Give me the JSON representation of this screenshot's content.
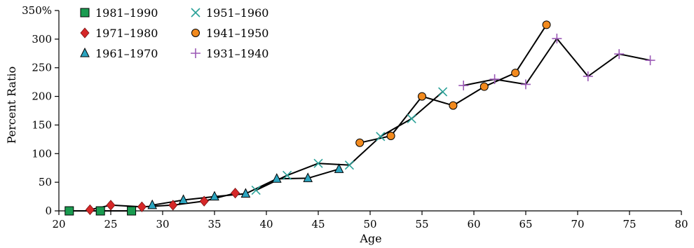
{
  "chart_data": {
    "type": "line",
    "xlabel": "Age",
    "ylabel": "Percent Ratio",
    "xlim": [
      20,
      80
    ],
    "ylim": [
      0,
      350
    ],
    "x_ticks": [
      20,
      25,
      30,
      35,
      40,
      45,
      50,
      55,
      60,
      65,
      70,
      75,
      80
    ],
    "x_tick_labels": [
      "20",
      "25",
      "30",
      "35",
      "40",
      "45",
      "50",
      "55",
      "60",
      "65",
      "70",
      "75",
      "80"
    ],
    "y_ticks": [
      0,
      50,
      100,
      150,
      200,
      250,
      300,
      350
    ],
    "y_tick_labels": [
      "0",
      "50",
      "100",
      "150",
      "200",
      "250",
      "300",
      "350%"
    ],
    "grid": false,
    "legend_position": "top-left",
    "series": [
      {
        "name": "1981–1990",
        "marker": "square",
        "color": "#1a9b50",
        "points": [
          [
            21,
            0
          ],
          [
            24,
            0
          ],
          [
            27,
            0
          ]
        ]
      },
      {
        "name": "1971–1980",
        "marker": "diamond",
        "color": "#d62728",
        "points": [
          [
            23,
            2
          ],
          [
            25,
            10
          ],
          [
            28,
            7
          ],
          [
            31,
            10
          ],
          [
            34,
            17
          ],
          [
            37,
            31
          ]
        ]
      },
      {
        "name": "1961–1970",
        "marker": "triangle",
        "color": "#2ca5c0",
        "points": [
          [
            29,
            10
          ],
          [
            32,
            19
          ],
          [
            35,
            25
          ],
          [
            38,
            30
          ],
          [
            41,
            56
          ],
          [
            44,
            57
          ],
          [
            47,
            73
          ]
        ]
      },
      {
        "name": "1951–1960",
        "marker": "x",
        "color": "#2aa198",
        "points": [
          [
            39,
            36
          ],
          [
            42,
            62
          ],
          [
            45,
            83
          ],
          [
            48,
            80
          ],
          [
            51,
            130
          ],
          [
            54,
            161
          ],
          [
            57,
            208
          ]
        ]
      },
      {
        "name": "1941–1950",
        "marker": "circle",
        "color": "#f28a1e",
        "points": [
          [
            49,
            119
          ],
          [
            52,
            131
          ],
          [
            55,
            200
          ],
          [
            58,
            184
          ],
          [
            61,
            217
          ],
          [
            64,
            241
          ],
          [
            67,
            325
          ]
        ]
      },
      {
        "name": "1931–1940",
        "marker": "plus",
        "color": "#9b59b6",
        "points": [
          [
            59,
            219
          ],
          [
            62,
            230
          ],
          [
            65,
            221
          ],
          [
            68,
            301
          ],
          [
            71,
            235
          ],
          [
            74,
            274
          ],
          [
            77,
            263
          ]
        ]
      }
    ]
  }
}
